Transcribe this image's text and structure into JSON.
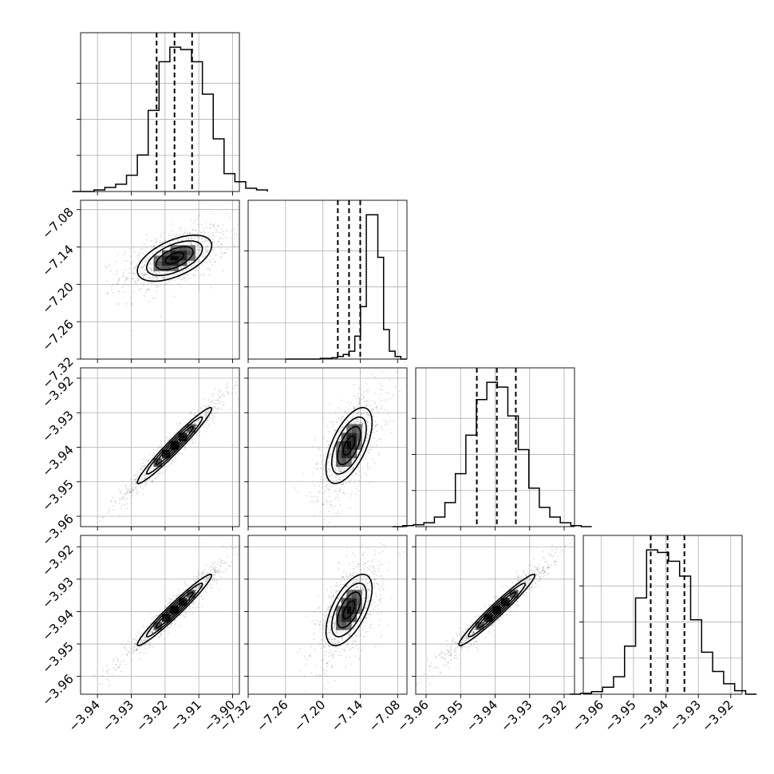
{
  "chart_data": {
    "type": "corner",
    "parameters": [
      {
        "range": [
          -3.945,
          -3.898
        ],
        "ticks": [
          -3.94,
          -3.93,
          -3.92,
          -3.91,
          -3.9
        ],
        "tick_labels": [
          "−3.94",
          "−3.93",
          "−3.92",
          "−3.91",
          "−3.90"
        ],
        "median": -3.9172,
        "sigma": 0.0055,
        "q16": -3.9225,
        "q84": -3.912
      },
      {
        "range": [
          -7.32,
          -7.065
        ],
        "ticks": [
          -7.32,
          -7.26,
          -7.2,
          -7.14,
          -7.08
        ],
        "tick_labels": [
          "−7.32",
          "−7.26",
          "−7.20",
          "−7.14",
          "−7.08"
        ],
        "median": -7.158,
        "sigma": 0.0185,
        "q16": -7.176,
        "q84": -7.14
      },
      {
        "range": [
          -3.963,
          -3.917
        ],
        "ticks": [
          -3.96,
          -3.95,
          -3.94,
          -3.93,
          -3.92
        ],
        "tick_labels": [
          "−3.96",
          "−3.95",
          "−3.94",
          "−3.93",
          "−3.92"
        ],
        "median": -3.9395,
        "sigma": 0.0055,
        "q16": -3.9453,
        "q84": -3.934
      },
      {
        "range": [
          -3.9655,
          -3.9165
        ],
        "ticks": [
          -3.96,
          -3.95,
          -3.94,
          -3.93,
          -3.92
        ],
        "tick_labels": [
          "−3.96",
          "−3.95",
          "−3.94",
          "−3.93",
          "−3.92"
        ],
        "median": -3.9395,
        "sigma": 0.0055,
        "q16": -3.9447,
        "q84": -3.9343
      }
    ],
    "correlations": {
      "1-0": 0.55,
      "2-0": 0.97,
      "2-1": 0.6,
      "3-0": 0.97,
      "3-1": 0.6,
      "3-2": 0.97
    },
    "histograms": [
      [
        0,
        0,
        2,
        5,
        9,
        20,
        45,
        100,
        160,
        178,
        175,
        160,
        120,
        65,
        22,
        12,
        4,
        2
      ],
      [
        0,
        0,
        0,
        0,
        0,
        0,
        1,
        1,
        2,
        4,
        7,
        12,
        35,
        80,
        220,
        220,
        155,
        45,
        12,
        4,
        0
      ],
      [
        0,
        1,
        2,
        4,
        10,
        25,
        55,
        95,
        132,
        150,
        145,
        115,
        80,
        40,
        20,
        10,
        4,
        1,
        0
      ],
      [
        0,
        1,
        3,
        8,
        20,
        55,
        110,
        165,
        162,
        152,
        135,
        85,
        48,
        26,
        12,
        4,
        0
      ]
    ],
    "quantiles": [
      0.16,
      0.5,
      0.84
    ],
    "grid": true,
    "colors": {
      "points": "#000000",
      "lines": "#000000",
      "grid": "#b0b0b0"
    }
  }
}
